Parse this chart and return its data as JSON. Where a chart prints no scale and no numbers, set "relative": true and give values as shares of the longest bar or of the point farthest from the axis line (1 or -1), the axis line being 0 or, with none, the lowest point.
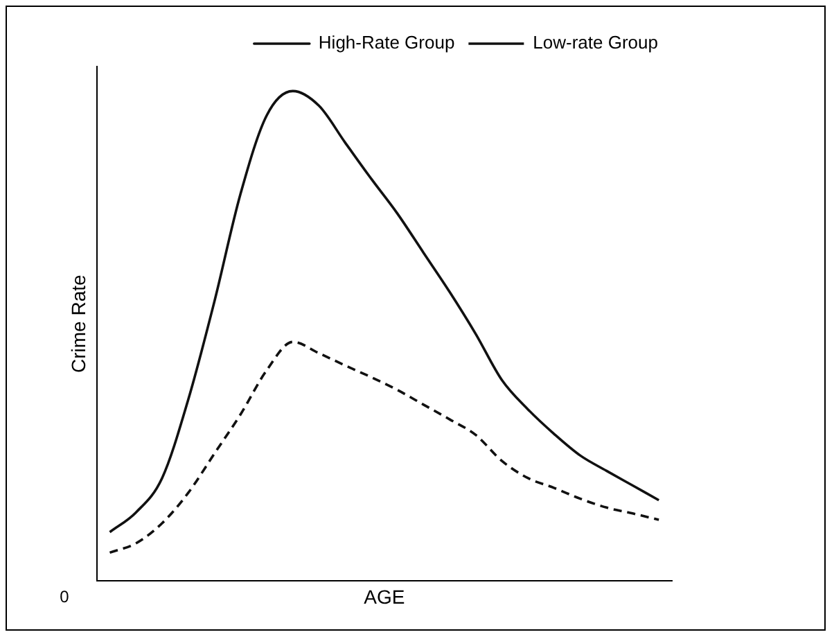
{
  "chart_data": {
    "type": "line",
    "xlabel": "AGE",
    "ylabel": "Crime Rate",
    "relative": true,
    "grid": false,
    "legend": "top right",
    "marker": "none",
    "annotations": [
      "0"
    ],
    "categories": [
      null,
      null,
      null,
      null,
      null,
      null,
      null,
      null,
      null,
      null,
      null,
      null,
      null,
      null,
      null,
      null,
      null,
      null,
      null,
      null,
      null,
      null
    ],
    "series": [
      {
        "name": "High-Rate Group",
        "color": "#111111",
        "line_style": "solid",
        "values": [
          0.1,
          0.14,
          0.21,
          0.37,
          0.57,
          0.79,
          0.95,
          1,
          0.97,
          0.895,
          0.821,
          0.75,
          0.67,
          0.59,
          0.504,
          0.41,
          0.35,
          0.3,
          0.256,
          0.225,
          0.195,
          0.165
        ]
      },
      {
        "name": "Low-rate Group",
        "color": "#111111",
        "line_style": "dashed",
        "values": [
          0.058,
          0.077,
          0.118,
          0.18,
          0.26,
          0.34,
          0.43,
          0.488,
          0.465,
          0.44,
          0.416,
          0.39,
          0.36,
          0.33,
          0.298,
          0.245,
          0.21,
          0.19,
          0.168,
          0.15,
          0.138,
          0.125
        ]
      }
    ]
  }
}
